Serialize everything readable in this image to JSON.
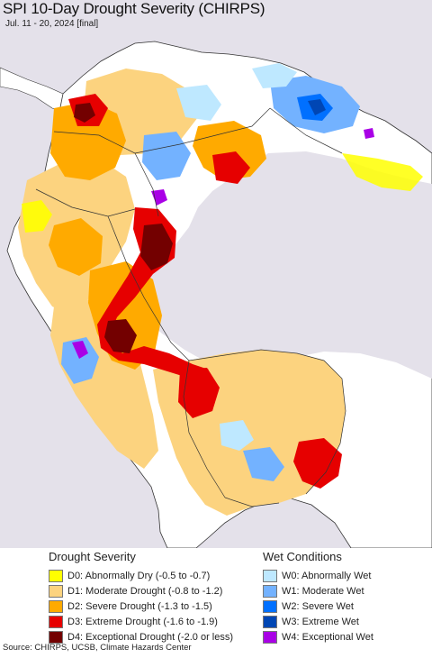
{
  "header": {
    "title": "SPI 10-Day Drought Severity (CHIRPS)",
    "subtitle": "Jul. 11 - 20, 2024 [final]"
  },
  "legend": {
    "drought": {
      "heading": "Drought Severity",
      "items": [
        {
          "label": "D0: Abnormally Dry (-0.5 to -0.7)",
          "color": "#ffff00"
        },
        {
          "label": "D1: Moderate Drought (-0.8 to -1.2)",
          "color": "#fcd37f"
        },
        {
          "label": "D2: Severe Drought (-1.3 to -1.5)",
          "color": "#ffaa00"
        },
        {
          "label": "D3: Extreme Drought (-1.6 to -1.9)",
          "color": "#e60000"
        },
        {
          "label": "D4: Exceptional Drought (-2.0 or less)",
          "color": "#730000"
        }
      ]
    },
    "wet": {
      "heading": "Wet Conditions",
      "items": [
        {
          "label": "W0: Abnormally Wet",
          "color": "#bee8ff"
        },
        {
          "label": "W1: Moderate Wet",
          "color": "#73b2ff"
        },
        {
          "label": "W2: Severe Wet",
          "color": "#0070ff"
        },
        {
          "label": "W3: Extreme Wet",
          "color": "#0046b4"
        },
        {
          "label": "W4: Exceptional Wet",
          "color": "#a900e6"
        }
      ]
    }
  },
  "colors": {
    "ocean": "#e4e1ea",
    "land_neutral": "#ffffff",
    "border": "#333333"
  },
  "footer": {
    "source": "Source: CHIRPS, UCSB, Climate Hazards Center"
  }
}
